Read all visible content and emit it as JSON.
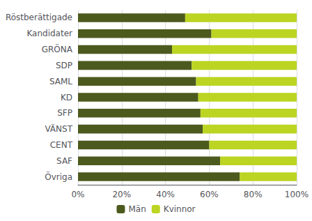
{
  "chart_data": {
    "type": "bar",
    "orientation": "horizontal",
    "stacked": true,
    "categories": [
      "Röstberättigade",
      "Kandidater",
      "GRÖNA",
      "SDP",
      "SAML",
      "KD",
      "SFP",
      "VÄNST",
      "CENT",
      "SAF",
      "Övriga"
    ],
    "series": [
      {
        "name": "Män",
        "color": "#4d5a1e",
        "values": [
          49,
          61,
          43,
          52,
          54,
          55,
          56,
          57,
          60,
          65,
          74
        ]
      },
      {
        "name": "Kvinnor",
        "color": "#bcd422",
        "values": [
          51,
          39,
          57,
          48,
          46,
          45,
          44,
          43,
          40,
          35,
          26
        ]
      }
    ],
    "xlim": [
      0,
      100
    ],
    "xticks": [
      {
        "value": 0,
        "label": "0%"
      },
      {
        "value": 20,
        "label": "20%"
      },
      {
        "value": 40,
        "label": "40%"
      },
      {
        "value": 60,
        "label": "60%"
      },
      {
        "value": 80,
        "label": "80%"
      },
      {
        "value": 100,
        "label": "100%"
      }
    ],
    "grid": true,
    "legend": "bottom"
  }
}
